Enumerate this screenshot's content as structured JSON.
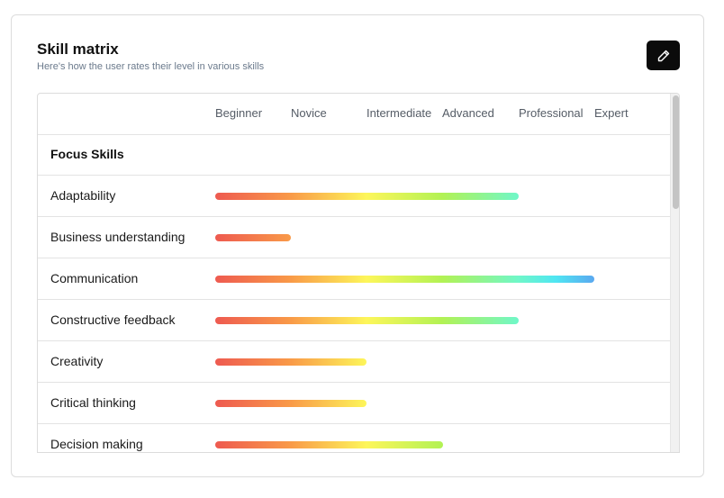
{
  "header": {
    "title": "Skill matrix",
    "subtitle": "Here's how the user rates their level in various skills",
    "edit_icon": "pencil-icon"
  },
  "levels": [
    "Beginner",
    "Novice",
    "Intermediate",
    "Advanced",
    "Professional",
    "Expert"
  ],
  "group": {
    "label": "Focus Skills"
  },
  "skills": [
    {
      "name": "Adaptability",
      "level": 4
    },
    {
      "name": "Business understanding",
      "level": 1
    },
    {
      "name": "Communication",
      "level": 5
    },
    {
      "name": "Constructive feedback",
      "level": 4
    },
    {
      "name": "Creativity",
      "level": 2
    },
    {
      "name": "Critical thinking",
      "level": 2
    },
    {
      "name": "Decision making",
      "level": 3
    }
  ],
  "colors": {
    "gradient": [
      "#ee5a50",
      "#f99a48",
      "#fdf65a",
      "#b2f254",
      "#70f7c8",
      "#4fe6f2",
      "#5aa8f0"
    ],
    "button_bg": "#0b0b0b"
  }
}
